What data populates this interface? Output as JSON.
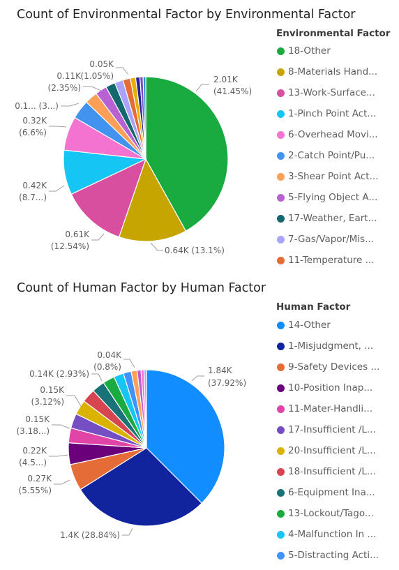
{
  "chart_data": [
    {
      "type": "pie",
      "title": "Count of Environmental Factor by Environmental Factor",
      "legend_title": "Environmental Factor",
      "legend_position": "right",
      "slices": [
        {
          "name": "18-Other",
          "value": 2010,
          "percent": 41.45,
          "color": "#1aab40"
        },
        {
          "name": "8-Materials Hand...",
          "value": 640,
          "percent": 13.1,
          "color": "#c7a500"
        },
        {
          "name": "13-Work-Surface...",
          "value": 610,
          "percent": 12.54,
          "color": "#d94fa0"
        },
        {
          "name": "1-Pinch Point Act...",
          "value": 420,
          "percent": 8.7,
          "color": "#15c6f4"
        },
        {
          "name": "6-Overhead Movi...",
          "value": 320,
          "percent": 6.6,
          "color": "#f472d0"
        },
        {
          "name": "2-Catch Point/Pu...",
          "value": 180,
          "percent": 3.7,
          "color": "#4292ef"
        },
        {
          "name": "3-Shear Point Act...",
          "value": 120,
          "percent": 2.5,
          "color": "#fe9f58"
        },
        {
          "name": "5-Flying Object A...",
          "value": 110,
          "percent": 2.35,
          "color": "#b761d3"
        },
        {
          "name": "17-Weather, Eart...",
          "value": 90,
          "percent": 1.9,
          "color": "#13676e"
        },
        {
          "name": "7-Gas/Vapor/Mis...",
          "value": 80,
          "percent": 1.7,
          "color": "#a9a3f9"
        },
        {
          "name": "11-Temperature ...",
          "value": 70,
          "percent": 1.45,
          "color": "#e66c37"
        },
        {
          "name": "",
          "value": 50,
          "percent": 1.05,
          "color": "#e6b000"
        },
        {
          "name": "",
          "value": 40,
          "percent": 0.8,
          "color": "#2d1f9a"
        },
        {
          "name": "",
          "value": 30,
          "percent": 0.6,
          "color": "#744ec2"
        },
        {
          "name": "",
          "value": 25,
          "percent": 0.5,
          "color": "#2f8ec2"
        }
      ],
      "data_labels": [
        {
          "lines": [
            "2.01K",
            "(41.45%)"
          ]
        },
        {
          "lines": [
            "0.64K (13.1%)"
          ]
        },
        {
          "lines": [
            "0.61K",
            "(12.54%)"
          ]
        },
        {
          "lines": [
            "0.42K",
            "(8.7...)"
          ]
        },
        {
          "lines": [
            "0.32K",
            "(6.6%)"
          ]
        },
        {
          "lines": [
            "0.1... (3...)"
          ]
        },
        {
          "lines": [
            "0.11K",
            "(2.35%)"
          ]
        },
        {
          "lines": [
            "0.05K",
            "(1.05%)"
          ]
        }
      ]
    },
    {
      "type": "pie",
      "title": "Count of Human Factor by Human Factor",
      "legend_title": "Human Factor",
      "legend_position": "right",
      "slices": [
        {
          "name": "14-Other",
          "value": 1840,
          "percent": 37.92,
          "color": "#118dff"
        },
        {
          "name": "1-Misjudgment, ...",
          "value": 1400,
          "percent": 28.84,
          "color": "#12239e"
        },
        {
          "name": "9-Safety Devices ...",
          "value": 270,
          "percent": 5.55,
          "color": "#e66c37"
        },
        {
          "name": "10-Position Inap...",
          "value": 220,
          "percent": 4.5,
          "color": "#6b007b"
        },
        {
          "name": "11-Mater-Handli...",
          "value": 150,
          "percent": 3.18,
          "color": "#e044a7"
        },
        {
          "name": "17-Insufficient /L...",
          "value": 150,
          "percent": 3.12,
          "color": "#744ec2"
        },
        {
          "name": "20-Insufficient /L...",
          "value": 150,
          "percent": 3.0,
          "color": "#d9b300"
        },
        {
          "name": "18-Insufficient /L...",
          "value": 140,
          "percent": 2.93,
          "color": "#d64550"
        },
        {
          "name": "6-Equipment Ina...",
          "value": 130,
          "percent": 2.7,
          "color": "#197278"
        },
        {
          "name": "13-Lockout/Tago...",
          "value": 120,
          "percent": 2.5,
          "color": "#1aab40"
        },
        {
          "name": "4-Malfunction In ...",
          "value": 100,
          "percent": 2.0,
          "color": "#15c6f4"
        },
        {
          "name": "5-Distracting Acti...",
          "value": 80,
          "percent": 1.6,
          "color": "#4092ff"
        },
        {
          "name": "",
          "value": 60,
          "percent": 1.2,
          "color": "#ffa058"
        },
        {
          "name": "",
          "value": 40,
          "percent": 0.8,
          "color": "#be5dc9"
        },
        {
          "name": "",
          "value": 30,
          "percent": 0.6,
          "color": "#f472d0"
        },
        {
          "name": "",
          "value": 25,
          "percent": 0.5,
          "color": "#b5a1ff"
        }
      ],
      "data_labels": [
        {
          "lines": [
            "1.84K",
            "(37.92%)"
          ]
        },
        {
          "lines": [
            "1.4K (28.84%)"
          ]
        },
        {
          "lines": [
            "0.27K",
            "(5.55%)"
          ]
        },
        {
          "lines": [
            "0.22K",
            "(4.5...)"
          ]
        },
        {
          "lines": [
            "0.15K",
            "(3.18...)"
          ]
        },
        {
          "lines": [
            "0.15K",
            "(3.12%)"
          ]
        },
        {
          "lines": [
            "0.14K (2.93%)"
          ]
        },
        {
          "lines": [
            "0.04K",
            "(0.8%)"
          ]
        }
      ]
    }
  ]
}
